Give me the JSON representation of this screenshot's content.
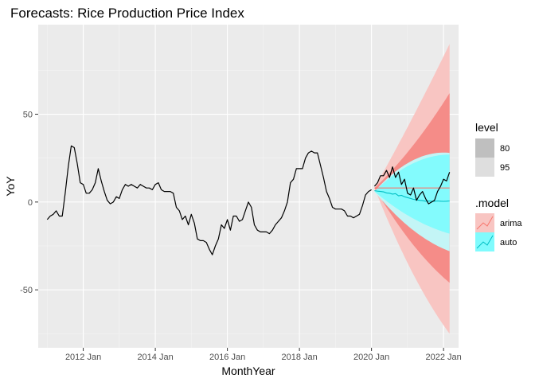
{
  "chart_data": {
    "type": "line",
    "title": "Forecasts: Rice Production Price Index",
    "xlabel": "MonthYear",
    "ylabel": "YoY",
    "x_ticks": [
      "2012 Jan",
      "2014 Jan",
      "2016 Jan",
      "2018 Jan",
      "2020 Jan",
      "2022 Jan"
    ],
    "y_ticks": [
      -50,
      0,
      50
    ],
    "xlim": [
      "2010-10",
      "2022-06"
    ],
    "ylim": [
      -83,
      101
    ],
    "grid": true,
    "legend_position": "right",
    "legends": {
      "level": {
        "title": "level",
        "entries": [
          "80",
          "95"
        ]
      },
      "model": {
        "title": ".model",
        "entries": [
          "arima",
          "auto"
        ]
      }
    },
    "colors": {
      "panel": "#ebebeb",
      "grid_major": "#ffffff",
      "history_line": "#000000",
      "arima": "#f8766d",
      "arima_95": "#f8c5c2",
      "arima_80": "#f58c88",
      "auto": "#00bfc4",
      "auto_95": "#c0fbfc",
      "auto_80": "#80fbfd",
      "level_80_key": "#bfbfbf",
      "level_95_key": "#dedede"
    },
    "series": [
      {
        "name": "",
        "role": "history",
        "x": [
          "2011-01",
          "2011-02",
          "2011-03",
          "2011-04",
          "2011-05",
          "2011-06",
          "2011-07",
          "2011-08",
          "2011-09",
          "2011-10",
          "2011-11",
          "2011-12",
          "2012-01",
          "2012-02",
          "2012-03",
          "2012-04",
          "2012-05",
          "2012-06",
          "2012-07",
          "2012-08",
          "2012-09",
          "2012-10",
          "2012-11",
          "2012-12",
          "2013-01",
          "2013-02",
          "2013-03",
          "2013-04",
          "2013-05",
          "2013-06",
          "2013-07",
          "2013-08",
          "2013-09",
          "2013-10",
          "2013-11",
          "2013-12",
          "2014-01",
          "2014-02",
          "2014-03",
          "2014-04",
          "2014-05",
          "2014-06",
          "2014-07",
          "2014-08",
          "2014-09",
          "2014-10",
          "2014-11",
          "2014-12",
          "2015-01",
          "2015-02",
          "2015-03",
          "2015-04",
          "2015-05",
          "2015-06",
          "2015-07",
          "2015-08",
          "2015-09",
          "2015-10",
          "2015-11",
          "2015-12",
          "2016-01",
          "2016-02",
          "2016-03",
          "2016-04",
          "2016-05",
          "2016-06",
          "2016-07",
          "2016-08",
          "2016-09",
          "2016-10",
          "2016-11",
          "2016-12",
          "2017-01",
          "2017-02",
          "2017-03",
          "2017-04",
          "2017-05",
          "2017-06",
          "2017-07",
          "2017-08",
          "2017-09",
          "2017-10",
          "2017-11",
          "2017-12",
          "2018-01",
          "2018-02",
          "2018-03",
          "2018-04",
          "2018-05",
          "2018-06",
          "2018-07",
          "2018-08",
          "2018-09",
          "2018-10",
          "2018-11",
          "2018-12",
          "2019-01",
          "2019-02",
          "2019-03",
          "2019-04",
          "2019-05",
          "2019-06",
          "2019-07",
          "2019-08",
          "2019-09",
          "2019-10",
          "2019-11",
          "2019-12",
          "2020-01"
        ],
        "values": [
          -10,
          -8,
          -7,
          -5,
          -8,
          -8,
          5,
          20,
          32,
          31,
          22,
          11,
          10,
          5,
          5,
          7,
          11,
          19,
          12,
          6,
          1,
          -1,
          0,
          3,
          2,
          7,
          10,
          9,
          10,
          9,
          8,
          10,
          9,
          8,
          8,
          7,
          10,
          11,
          7,
          6,
          6,
          6,
          5,
          -3,
          -5,
          -10,
          -8,
          -13,
          -7,
          -12,
          -21,
          -22,
          -22,
          -23,
          -27,
          -30,
          -25,
          -21,
          -13,
          -15,
          -10,
          -16,
          -8,
          -8,
          -11,
          -10,
          -5,
          0,
          -3,
          -13,
          -16,
          -17,
          -17,
          -17,
          -18,
          -16,
          -13,
          -11,
          -9,
          -5,
          0,
          11,
          13,
          19,
          19,
          19,
          25,
          28,
          29,
          28,
          28,
          21,
          14,
          6,
          2,
          -3,
          -4,
          -4,
          -4,
          -5,
          -8,
          -8,
          -9,
          -8,
          -7,
          -2,
          4,
          6,
          7
        ]
      },
      {
        "name": "",
        "role": "history-continued",
        "x": [
          "2020-02",
          "2020-03",
          "2020-04",
          "2020-05",
          "2020-06",
          "2020-07",
          "2020-08",
          "2020-09",
          "2020-10",
          "2020-11",
          "2020-12",
          "2021-01",
          "2021-02",
          "2021-03",
          "2021-04",
          "2021-05",
          "2021-06",
          "2021-07",
          "2021-08",
          "2021-09",
          "2021-10",
          "2021-11",
          "2021-12",
          "2022-01",
          "2022-02",
          "2022-03"
        ],
        "values": [
          9,
          11,
          15,
          15,
          18,
          14,
          20,
          14,
          17,
          10,
          13,
          5,
          4,
          8,
          1,
          4,
          6,
          2,
          -1,
          0,
          1,
          6,
          9,
          13,
          12,
          17
        ]
      },
      {
        "name": "arima",
        "role": "forecast",
        "x_start": "2020-02",
        "x_end": "2022-03",
        "mean": 8,
        "band_80": [
          [
            8,
            8
          ],
          [
            -28,
            28
          ],
          [
            -46,
            62
          ]
        ],
        "band_95": [
          [
            8,
            8
          ],
          [
            -46,
            46
          ],
          [
            -75,
            90
          ]
        ]
      },
      {
        "name": "auto",
        "role": "forecast",
        "mean_values": [
          6.5,
          6.2,
          6,
          5.8,
          5.2,
          5,
          4.5,
          4.8,
          3.5,
          3.8,
          3,
          2.5,
          2,
          1.5,
          1.2,
          1,
          0.8,
          0.5,
          0.6,
          0.5,
          0.4,
          0.6,
          0.5,
          0.4,
          0.5,
          0.6
        ],
        "band_80": [
          [
            6,
            6
          ],
          [
            -12,
            27
          ],
          [
            -18,
            27
          ]
        ],
        "band_95": [
          [
            6,
            6
          ],
          [
            -20,
            30
          ],
          [
            -28,
            28
          ]
        ]
      }
    ]
  }
}
